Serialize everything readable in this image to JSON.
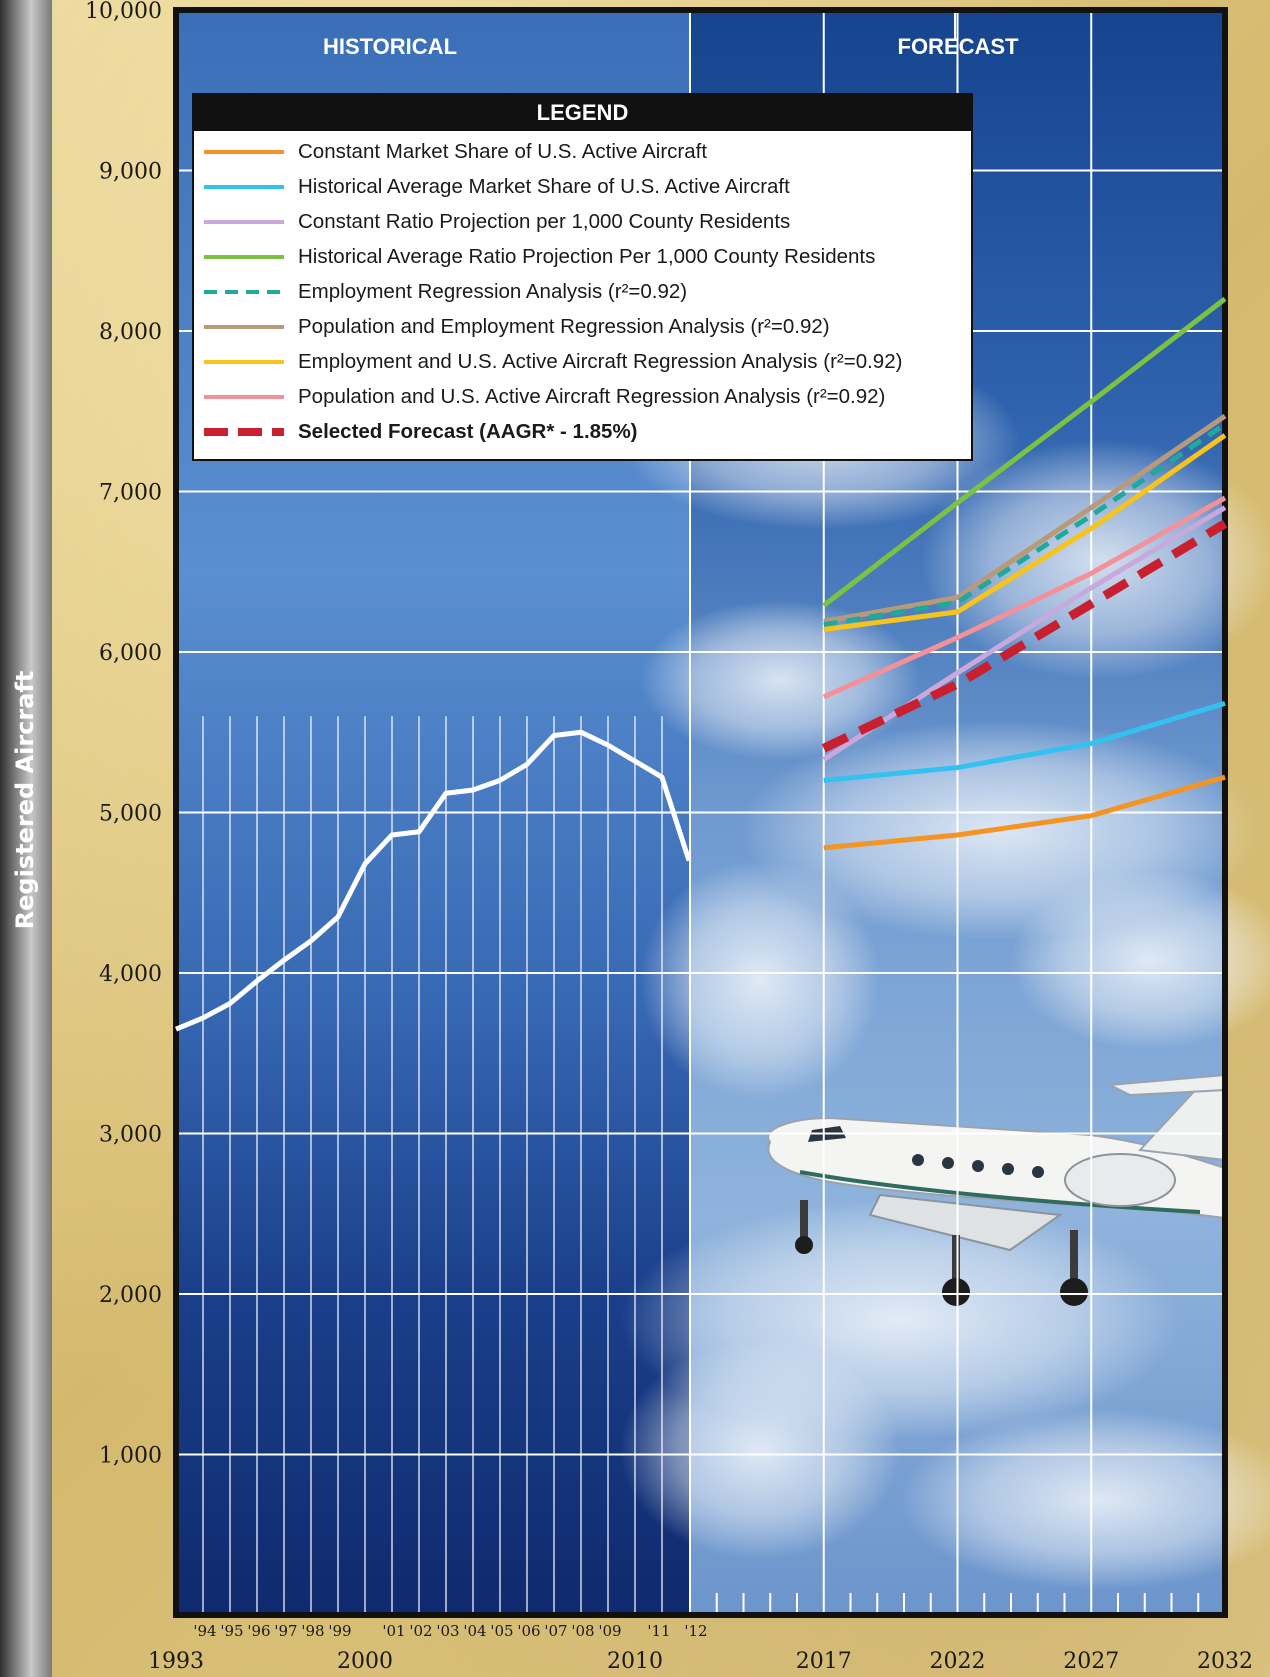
{
  "y_axis_title": "Registered Aircraft",
  "panels": {
    "historical": "HISTORICAL",
    "forecast": "FORECAST"
  },
  "legend": {
    "title": "LEGEND",
    "items": [
      {
        "label": "Constant Market Share of U.S. Active Aircraft",
        "color": "#f39424",
        "style": "solid"
      },
      {
        "label": "Historical Average Market Share of U.S. Active Aircraft",
        "color": "#33c2f0",
        "style": "solid"
      },
      {
        "label": "Constant Ratio Projection per 1,000 County Residents",
        "color": "#c9a8dc",
        "style": "solid"
      },
      {
        "label": "Historical Average Ratio Projection Per 1,000 County Residents",
        "color": "#7cc242",
        "style": "solid"
      },
      {
        "label": "Employment Regression Analysis (r²=0.92)",
        "color": "#1fa89c",
        "style": "dashed"
      },
      {
        "label": "Population and Employment Regression Analysis (r²=0.92)",
        "color": "#b89a7a",
        "style": "solid"
      },
      {
        "label": "Employment and U.S. Active Aircraft Regression Analysis (r²=0.92)",
        "color": "#f6c41b",
        "style": "solid"
      },
      {
        "label": "Population and U.S. Active Aircraft Regression Analysis (r²=0.92)",
        "color": "#f3919a",
        "style": "solid"
      },
      {
        "label": "Selected Forecast (AAGR* - 1.85%)",
        "color": "#c8202e",
        "style": "dashed-bold"
      }
    ]
  },
  "chart_data": {
    "type": "line",
    "ylabel": "Registered Aircraft",
    "ylim": [
      0,
      10000
    ],
    "y_ticks": [
      1000,
      2000,
      3000,
      4000,
      5000,
      6000,
      7000,
      8000,
      9000,
      10000
    ],
    "y_tick_labels": [
      "1,000",
      "2,000",
      "3,000",
      "4,000",
      "5,000",
      "6,000",
      "7,000",
      "8,000",
      "9,000",
      "10,000"
    ],
    "x_major_labels": [
      "1993",
      "2000",
      "2010",
      "2017",
      "2022",
      "2027",
      "2032"
    ],
    "x_minor_labels": [
      "'94",
      "'95",
      "'96",
      "'97",
      "'98",
      "'99",
      "'01",
      "'02",
      "'03",
      "'04",
      "'05",
      "'06",
      "'07",
      "'08",
      "'09",
      "'11",
      "'12"
    ],
    "historical": {
      "name": "",
      "x": [
        1993,
        1994,
        1995,
        1996,
        1997,
        1998,
        1999,
        2000,
        2001,
        2002,
        2003,
        2004,
        2005,
        2006,
        2007,
        2008,
        2009,
        2010,
        2011,
        2012
      ],
      "values": [
        3650,
        3720,
        3810,
        3950,
        4080,
        4200,
        4350,
        4680,
        4860,
        4880,
        5120,
        5140,
        5200,
        5300,
        5480,
        5500,
        5420,
        5320,
        5220,
        4700
      ]
    },
    "forecast_x": [
      2017,
      2022,
      2027,
      2032
    ],
    "series": [
      {
        "name": "Constant Market Share of U.S. Active Aircraft",
        "values": [
          4780,
          4860,
          4980,
          5220
        ]
      },
      {
        "name": "Historical Average Market Share of U.S. Active Aircraft",
        "values": [
          5200,
          5280,
          5430,
          5680
        ]
      },
      {
        "name": "Constant Ratio Projection per 1,000 County Residents",
        "values": [
          5330,
          5870,
          6400,
          6900
        ]
      },
      {
        "name": "Historical Average Ratio Projection Per 1,000 County Residents",
        "values": [
          6290,
          6930,
          7560,
          8200
        ]
      },
      {
        "name": "Employment Regression Analysis (r²=0.92)",
        "values": [
          6170,
          6310,
          6850,
          7420
        ]
      },
      {
        "name": "Population and Employment Regression Analysis (r²=0.92)",
        "values": [
          6190,
          6340,
          6900,
          7470
        ]
      },
      {
        "name": "Employment and U.S. Active Aircraft Regression Analysis (r²=0.92)",
        "values": [
          6140,
          6250,
          6770,
          7350
        ]
      },
      {
        "name": "Population and U.S. Active Aircraft Regression Analysis (r²=0.92)",
        "values": [
          5720,
          6090,
          6490,
          6960
        ]
      },
      {
        "name": "Selected Forecast (AAGR* - 1.85%)",
        "values": [
          5400,
          5800,
          6300,
          6800
        ]
      }
    ]
  }
}
